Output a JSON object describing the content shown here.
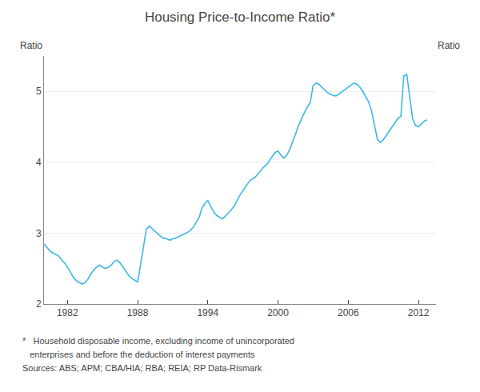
{
  "chart_data": {
    "type": "line",
    "title": "Housing Price-to-Income Ratio*",
    "ylabel": "Ratio",
    "y2label": "Ratio",
    "annotations": [
      "*   Household disposable income, excluding income of unincorporated",
      "   enterprises and before the deduction of interest payments",
      "Sources: ABS; APM; CBA/HIA; RBA; REIA; RP Data-Rismark"
    ],
    "color": "#3CB8E8",
    "grid": true,
    "xlim": [
      1980.0,
      2013.5
    ],
    "xticks": [
      1982,
      1988,
      1994,
      2000,
      2006,
      2012
    ],
    "ylim": [
      2.0,
      5.5
    ],
    "yticks": [
      2,
      3,
      4,
      5
    ],
    "y2lim": [
      2.0,
      5.5
    ],
    "y2ticks": [
      2,
      3,
      4,
      5
    ],
    "x": [
      1980.0,
      1980.25,
      1980.5,
      1980.75,
      1981.0,
      1981.25,
      1981.5,
      1981.75,
      1982.0,
      1982.25,
      1982.5,
      1982.75,
      1983.0,
      1983.25,
      1983.5,
      1983.75,
      1984.0,
      1984.25,
      1984.5,
      1984.75,
      1985.0,
      1985.25,
      1985.5,
      1985.75,
      1986.0,
      1986.25,
      1986.5,
      1986.75,
      1987.0,
      1987.25,
      1987.5,
      1987.75,
      1988.0,
      1988.25,
      1988.5,
      1988.75,
      1989.0,
      1989.25,
      1989.5,
      1989.75,
      1990.0,
      1990.25,
      1990.5,
      1990.75,
      1991.0,
      1991.25,
      1991.5,
      1991.75,
      1992.0,
      1992.25,
      1992.5,
      1992.75,
      1993.0,
      1993.25,
      1993.5,
      1993.75,
      1994.0,
      1994.25,
      1994.5,
      1994.75,
      1995.0,
      1995.25,
      1995.5,
      1995.75,
      1996.0,
      1996.25,
      1996.5,
      1996.75,
      1997.0,
      1997.25,
      1997.5,
      1997.75,
      1998.0,
      1998.25,
      1998.5,
      1998.75,
      1999.0,
      1999.25,
      1999.5,
      1999.75,
      2000.0,
      2000.25,
      2000.5,
      2000.75,
      2001.0,
      2001.25,
      2001.5,
      2001.75,
      2002.0,
      2002.25,
      2002.5,
      2002.75,
      2003.0,
      2003.25,
      2003.5,
      2003.75,
      2004.0,
      2004.25,
      2004.5,
      2004.75,
      2005.0,
      2005.25,
      2005.5,
      2005.75,
      2006.0,
      2006.25,
      2006.5,
      2006.75,
      2007.0,
      2007.25,
      2007.5,
      2007.75,
      2008.0,
      2008.25,
      2008.5,
      2008.75,
      2009.0,
      2009.25,
      2009.5,
      2009.75,
      2010.0,
      2010.25,
      2010.5,
      2010.75,
      2011.0,
      2011.25,
      2011.5,
      2011.75,
      2012.0,
      2012.25,
      2012.5,
      2012.75
    ],
    "values": [
      2.85,
      2.8,
      2.75,
      2.72,
      2.7,
      2.68,
      2.62,
      2.58,
      2.52,
      2.45,
      2.38,
      2.33,
      2.3,
      2.28,
      2.3,
      2.35,
      2.42,
      2.48,
      2.52,
      2.55,
      2.52,
      2.5,
      2.52,
      2.55,
      2.6,
      2.62,
      2.58,
      2.52,
      2.46,
      2.4,
      2.36,
      2.33,
      2.31,
      2.55,
      2.82,
      3.06,
      3.1,
      3.06,
      3.02,
      2.98,
      2.95,
      2.93,
      2.92,
      2.9,
      2.92,
      2.93,
      2.95,
      2.97,
      2.99,
      3.01,
      3.04,
      3.08,
      3.15,
      3.22,
      3.35,
      3.42,
      3.46,
      3.38,
      3.3,
      3.25,
      3.22,
      3.2,
      3.24,
      3.28,
      3.33,
      3.38,
      3.46,
      3.54,
      3.6,
      3.66,
      3.72,
      3.76,
      3.78,
      3.83,
      3.88,
      3.93,
      3.96,
      4.02,
      4.08,
      4.14,
      4.16,
      4.1,
      4.06,
      4.1,
      4.18,
      4.28,
      4.4,
      4.52,
      4.62,
      4.7,
      4.78,
      4.84,
      5.08,
      5.12,
      5.1,
      5.06,
      5.02,
      4.98,
      4.96,
      4.94,
      4.94,
      4.97,
      5.0,
      5.04,
      5.07,
      5.1,
      5.12,
      5.1,
      5.06,
      5.0,
      4.93,
      4.85,
      4.72,
      4.52,
      4.32,
      4.28,
      4.32,
      4.38,
      4.44,
      4.5,
      4.56,
      4.62,
      4.65,
      5.22,
      5.24,
      4.9,
      4.62,
      4.52,
      4.5,
      4.54,
      4.58,
      4.6
    ]
  }
}
